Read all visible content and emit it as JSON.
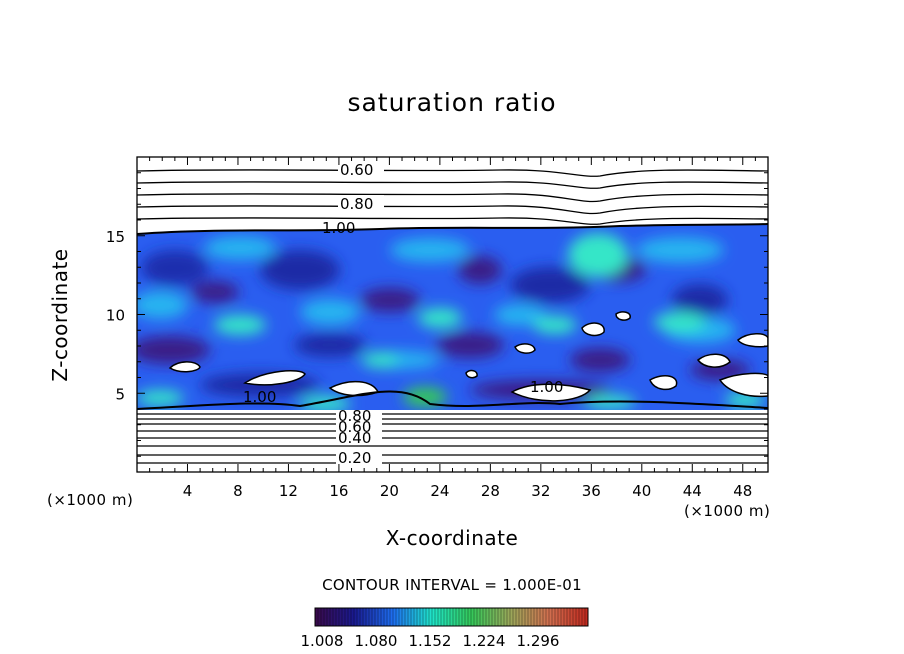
{
  "chart_data": {
    "type": "heatmap",
    "title": "saturation ratio",
    "xlabel": "X-coordinate",
    "ylabel": "Z-coordinate",
    "x_unit_label": "(×1000 m)",
    "xlim": [
      0,
      50
    ],
    "ylim": [
      0,
      20
    ],
    "x_ticks": [
      4,
      8,
      12,
      16,
      20,
      24,
      28,
      32,
      36,
      40,
      44,
      48
    ],
    "y_ticks": [
      5,
      10,
      15
    ],
    "contour_interval_text": "CONTOUR INTERVAL = 1.000E-01",
    "contour_labels": [
      "0.60",
      "0.80",
      "1.00",
      "1.00",
      "1.00",
      "0.80",
      "0.60",
      "0.40",
      "0.20"
    ],
    "colorbar": {
      "tick_labels": [
        "1.008",
        "1.080",
        "1.152",
        "1.224",
        "1.296"
      ],
      "colors": [
        "#3a0a4a",
        "#1a1a90",
        "#1e6ef0",
        "#1fe4c8",
        "#34c85a",
        "#9aa85a",
        "#d27050",
        "#c0281e"
      ]
    },
    "colors": {
      "supersaturated_fill": "#2a5ef0",
      "high_fill": "#36e6c8",
      "low_fill": "#3a1a86",
      "background": "#ffffff",
      "contour_line": "#000000"
    },
    "grid": false
  }
}
